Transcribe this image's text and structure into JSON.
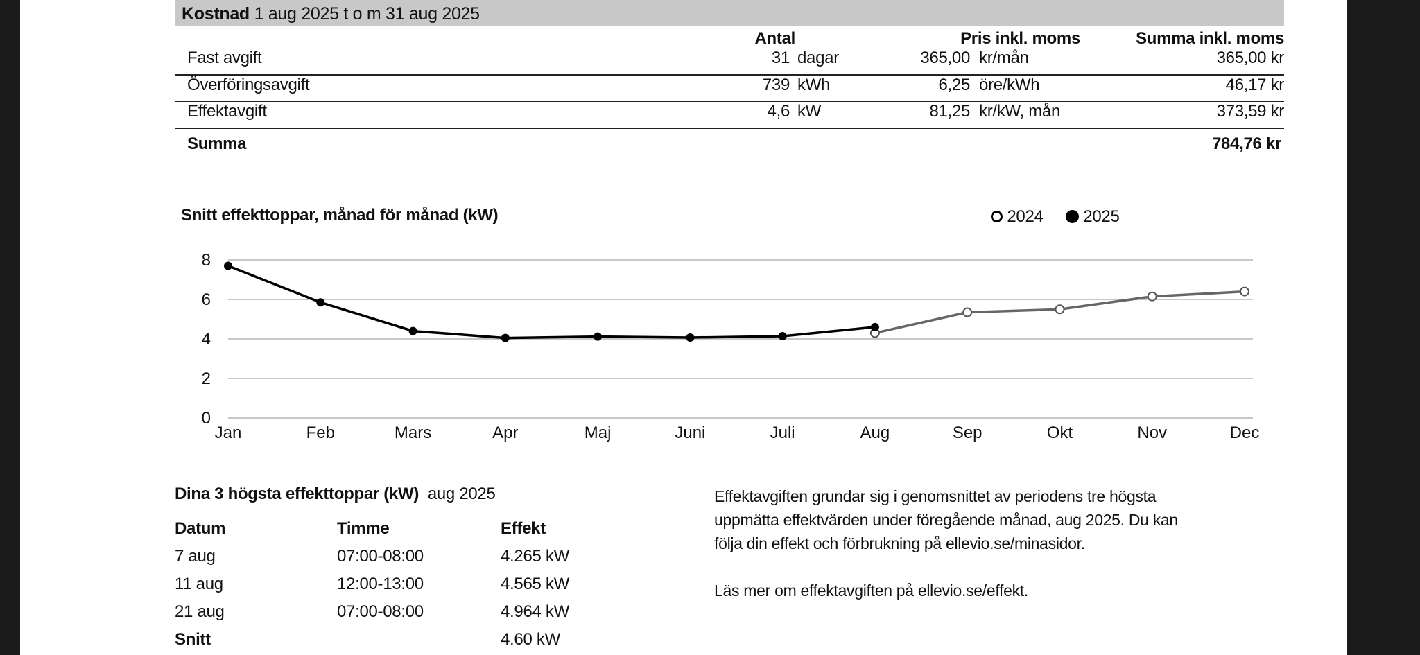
{
  "cost": {
    "title": "Kostnad",
    "period": "1 aug 2025 t o m 31 aug 2025",
    "headers": {
      "antal": "Antal",
      "pris": "Pris inkl. moms",
      "summa": "Summa inkl. moms"
    },
    "rows": [
      {
        "label": "Fast avgift",
        "qty": "31",
        "qty_unit": "dagar",
        "price": "365,00",
        "price_unit": "kr/mån",
        "sum": "365,00 kr"
      },
      {
        "label": "Överföringsavgift",
        "qty": "739",
        "qty_unit": "kWh",
        "price": "6,25",
        "price_unit": "öre/kWh",
        "sum": "46,17 kr"
      },
      {
        "label": "Effektavgift",
        "qty": "4,6",
        "qty_unit": "kW",
        "price": "81,25",
        "price_unit": "kr/kW, mån",
        "sum": "373,59 kr"
      }
    ],
    "total_label": "Summa",
    "total": "784,76 kr"
  },
  "chart_data": {
    "type": "line",
    "title": "Snitt effekttoppar, månad för månad (kW)",
    "categories": [
      "Jan",
      "Feb",
      "Mars",
      "Apr",
      "Maj",
      "Juni",
      "Juli",
      "Aug",
      "Sep",
      "Okt",
      "Nov",
      "Dec"
    ],
    "series": [
      {
        "name": "2024",
        "marker": "open",
        "color": "#666666",
        "values": [
          null,
          null,
          null,
          null,
          null,
          null,
          null,
          4.3,
          5.35,
          5.5,
          6.15,
          6.4
        ]
      },
      {
        "name": "2025",
        "marker": "filled",
        "color": "#000000",
        "values": [
          7.7,
          5.85,
          4.4,
          4.05,
          4.12,
          4.07,
          4.14,
          4.6,
          null,
          null,
          null,
          null
        ]
      }
    ],
    "yticks": [
      0,
      2,
      4,
      6,
      8
    ],
    "ylim": [
      0,
      8
    ],
    "grid": true,
    "legend": "top-right"
  },
  "peaks": {
    "title": "Dina 3 högsta effekttoppar (kW)",
    "period": "aug 2025",
    "headers": [
      "Datum",
      "Timme",
      "Effekt"
    ],
    "rows": [
      [
        "7 aug",
        "07:00-08:00",
        "4.265 kW"
      ],
      [
        "11 aug",
        "12:00-13:00",
        "4.565 kW"
      ],
      [
        "21 aug",
        "07:00-08:00",
        "4.964 kW"
      ]
    ],
    "avg_label": "Snitt",
    "avg": "4.60 kW"
  },
  "info": {
    "lines": [
      "Effektavgiften grundar sig i genomsnittet av periodens tre högsta",
      "uppmätta effektvärden under föregående månad, aug 2025. Du kan",
      "följa din effekt och förbrukning på ellevio.se/minasidor."
    ],
    "more": "Läs mer om effektavgiften på ellevio.se/effekt."
  }
}
